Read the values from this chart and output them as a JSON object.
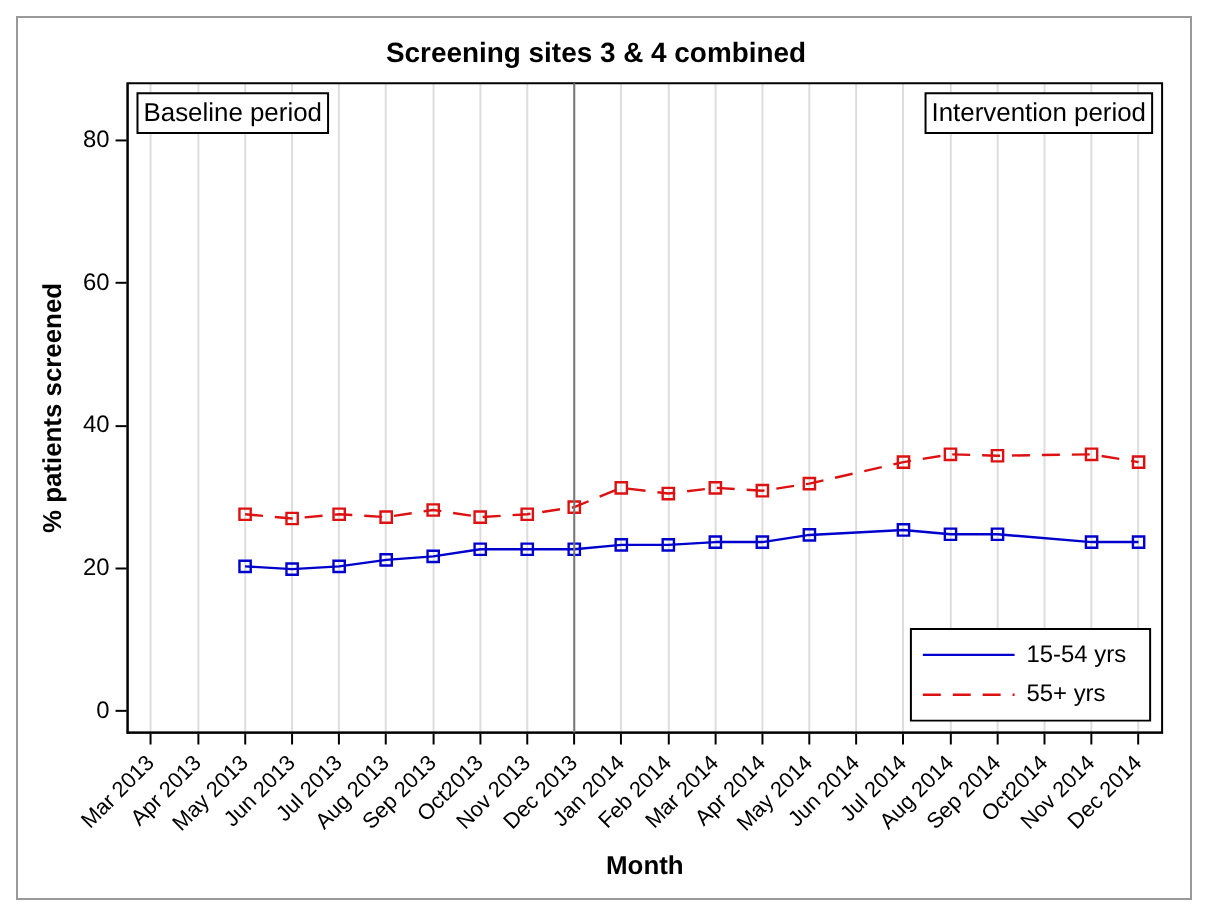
{
  "chart_data": {
    "type": "line",
    "title": "Screening sites 3 & 4 combined",
    "xlabel": "Month",
    "ylabel": "% patients screened",
    "categories": [
      "Mar 2013",
      "Apr 2013",
      "May 2013",
      "Jun 2013",
      "Jul 2013",
      "Aug 2013",
      "Sep 2013",
      "Oct2013",
      "Nov 2013",
      "Dec 2013",
      "Jan 2014",
      "Feb 2014",
      "Mar 2014",
      "Apr 2014",
      "May 2014",
      "Jun 2014",
      "Jul 2014",
      "Aug 2014",
      "Sep 2014",
      "Oct2014",
      "Nov 2014",
      "Dec 2014"
    ],
    "series": [
      {
        "name": "15-54 yrs",
        "color": "#0000cc",
        "line_style": "solid",
        "values": [
          null,
          null,
          20.3,
          19.9,
          20.3,
          21.2,
          21.7,
          22.7,
          22.7,
          22.7,
          23.3,
          23.3,
          23.7,
          23.7,
          24.7,
          null,
          25.4,
          24.8,
          24.8,
          null,
          23.7,
          23.7
        ]
      },
      {
        "name": "55+ yrs",
        "color": "#dd1111",
        "line_style": "dashed",
        "values": [
          null,
          null,
          27.6,
          27.0,
          27.6,
          27.2,
          28.2,
          27.2,
          27.6,
          28.6,
          31.3,
          30.5,
          31.3,
          30.9,
          31.9,
          null,
          34.9,
          36.0,
          35.8,
          null,
          36.0,
          34.9
        ]
      }
    ],
    "ylim": [
      -3,
      88
    ],
    "yticks": [
      0,
      20,
      40,
      60,
      80
    ],
    "grid": "x",
    "marker": "square",
    "legend": "bottom right",
    "ref_lines": [
      {
        "axis": "x",
        "value": "Dec 2013",
        "color": "#777777"
      }
    ],
    "annotations": [
      "Baseline period",
      "Intervention period"
    ]
  }
}
